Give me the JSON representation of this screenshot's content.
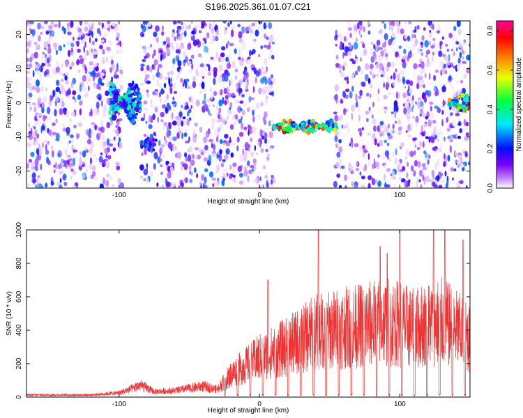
{
  "title": "S196.2025.361.01.07.C21",
  "chart_data": [
    {
      "type": "heatmap",
      "xlabel": "Height of straight line (km)",
      "ylabel": "Frequency (Hz)",
      "xlim": [
        -166,
        150
      ],
      "ylim": [
        -25,
        24
      ],
      "xticks": [
        -100,
        0,
        100
      ],
      "yticks": [
        -20,
        -10,
        0,
        10,
        20
      ],
      "colorbar": {
        "label": "Normalized spectral amplitude",
        "range": [
          0,
          0.85
        ],
        "ticks": [
          "0.0",
          "0.2",
          "0.4",
          "0.6",
          "0.8"
        ],
        "tick_values": [
          0.0,
          0.2,
          0.4,
          0.6,
          0.8
        ],
        "colors": [
          "#ffffff",
          "#8000ff",
          "#0000ff",
          "#00ffff",
          "#00ff00",
          "#ffff00",
          "#ff8000",
          "#ff0000",
          "#ff0080"
        ]
      },
      "gaps_km": [
        [
          -98,
          -84
        ],
        [
          10,
          54
        ]
      ],
      "features": [
        {
          "name": "blob",
          "x_range": [
            -107,
            -85
          ],
          "y_center": 0,
          "y_halfwidth": 6,
          "peak_amplitude": 0.45
        },
        {
          "name": "trace",
          "x_range": [
            -84,
            -75
          ],
          "y_center": -12,
          "y_halfwidth": 3,
          "peak_amplitude": 0.3
        },
        {
          "name": "band",
          "x_range": [
            9,
            55
          ],
          "y_center": -7,
          "y_halfwidth": 2,
          "peak_amplitude": 0.8
        },
        {
          "name": "blob",
          "x_range": [
            135,
            150
          ],
          "y_center": 0,
          "y_halfwidth": 2.5,
          "peak_amplitude": 0.75
        }
      ]
    },
    {
      "type": "line",
      "xlabel": "Height of straight line (km)",
      "ylabel": "SNR (10 * v/v)",
      "xlim": [
        -166,
        150
      ],
      "ylim": [
        0,
        1000
      ],
      "xticks": [
        -100,
        0,
        100
      ],
      "yticks": [
        0,
        200,
        400,
        600,
        800,
        1000
      ],
      "color": "#ee3333",
      "envelope": {
        "x": [
          -166,
          -120,
          -100,
          -90,
          -85,
          -75,
          -60,
          -50,
          -40,
          -30,
          -25,
          -20,
          -10,
          0,
          10,
          20,
          30,
          40,
          50,
          60,
          70,
          80,
          90,
          100,
          110,
          120,
          130,
          140,
          150
        ],
        "y": [
          20,
          20,
          40,
          80,
          110,
          50,
          60,
          80,
          100,
          70,
          150,
          220,
          300,
          380,
          430,
          480,
          550,
          620,
          640,
          660,
          680,
          700,
          720,
          700,
          650,
          700,
          720,
          650,
          560
        ]
      },
      "spikes": [
        {
          "x": 42,
          "y": 1000
        },
        {
          "x": 100,
          "y": 1000
        },
        {
          "x": 124,
          "y": 1000
        },
        {
          "x": 132,
          "y": 1000
        },
        {
          "x": 86,
          "y": 900
        },
        {
          "x": 91,
          "y": 860
        },
        {
          "x": 145,
          "y": 940
        },
        {
          "x": 6,
          "y": 700
        }
      ],
      "dips_every_km": 9,
      "dips_start_km": -25
    }
  ]
}
